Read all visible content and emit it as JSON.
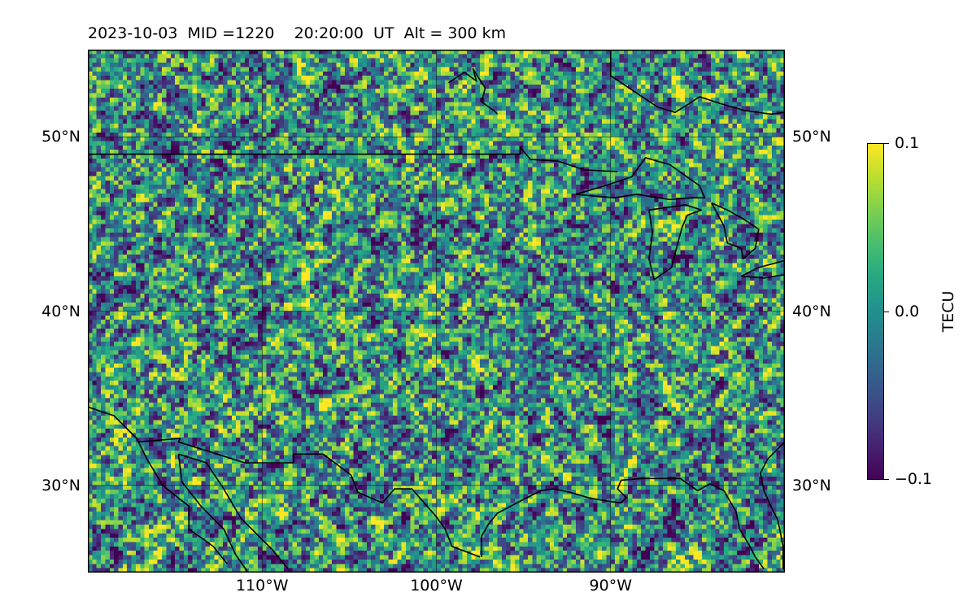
{
  "title": "2023-10-03  MID =1220    20:20:00  UT  Alt = 300 km",
  "chart_data": {
    "type": "heatmap",
    "title": "2023-10-03  MID =1220    20:20:00  UT  Alt = 300 km",
    "lon_range": [
      -120,
      -80
    ],
    "lat_range": [
      25,
      55
    ],
    "lat_ticks": [
      {
        "value": 50,
        "label": "50°N"
      },
      {
        "value": 40,
        "label": "40°N"
      },
      {
        "value": 30,
        "label": "30°N"
      }
    ],
    "lon_ticks": [
      {
        "value": -110,
        "label": "110°W"
      },
      {
        "value": -100,
        "label": "100°W"
      },
      {
        "value": -90,
        "label": "90°W"
      }
    ],
    "grid": true,
    "colormap": "viridis",
    "colorbar": {
      "label": "TECU",
      "vmin": -0.1,
      "vmax": 0.1,
      "ticks": [
        {
          "value": 0.1,
          "label": "0.1"
        },
        {
          "value": 0.0,
          "label": "0.0"
        },
        {
          "value": -0.1,
          "label": "−0.1"
        }
      ]
    },
    "field_description_colors": {
      "low": "#440154",
      "mid": "#21918c",
      "high": "#fde725"
    }
  },
  "coastlines": {
    "us_canada_border": [
      [
        -120,
        49
      ],
      [
        -95.2,
        49
      ],
      [
        -95.2,
        49.4
      ],
      [
        -94.6,
        48.7
      ],
      [
        -93,
        48.6
      ],
      [
        -91.5,
        48.1
      ],
      [
        -89.6,
        48
      ]
    ],
    "mexico_border": [
      [
        -117.1,
        32.5
      ],
      [
        -114.7,
        32.7
      ],
      [
        -114.8,
        32.5
      ],
      [
        -111,
        31.3
      ],
      [
        -108.2,
        31.3
      ],
      [
        -108.2,
        31.8
      ],
      [
        -106.5,
        31.8
      ],
      [
        -104.9,
        30.6
      ],
      [
        -104.5,
        29.6
      ],
      [
        -103.1,
        29
      ],
      [
        -102.4,
        29.8
      ],
      [
        -101.4,
        29.8
      ],
      [
        -100,
        28.2
      ],
      [
        -99.5,
        27.5
      ],
      [
        -99.1,
        26.5
      ],
      [
        -97.5,
        25.9
      ]
    ],
    "gulf_coast": [
      [
        -97.4,
        25.9
      ],
      [
        -97.4,
        27.1
      ],
      [
        -97,
        27.8
      ],
      [
        -96.5,
        28.4
      ],
      [
        -95,
        29.2
      ],
      [
        -94,
        29.7
      ],
      [
        -93.3,
        29.8
      ],
      [
        -92.3,
        29.6
      ],
      [
        -91.3,
        29.3
      ],
      [
        -90.2,
        29.1
      ],
      [
        -89.4,
        29.0
      ],
      [
        -89.1,
        29.3
      ],
      [
        -89.6,
        29.8
      ],
      [
        -89.4,
        30.3
      ],
      [
        -88.2,
        30.4
      ],
      [
        -87,
        30.4
      ],
      [
        -86,
        30.4
      ],
      [
        -85,
        29.7
      ],
      [
        -84.3,
        30.1
      ],
      [
        -83.5,
        29.7
      ],
      [
        -82.8,
        28.5
      ],
      [
        -82.6,
        27.5
      ],
      [
        -82,
        26.5
      ],
      [
        -81.7,
        25.9
      ],
      [
        -81.2,
        25.2
      ]
    ],
    "florida_atlantic": [
      [
        -80.1,
        25.2
      ],
      [
        -80.1,
        26.5
      ],
      [
        -80.4,
        28
      ],
      [
        -80.8,
        28.8
      ],
      [
        -81.2,
        29.7
      ],
      [
        -81.4,
        30.7
      ],
      [
        -81.0,
        31.5
      ],
      [
        -80.0,
        32.5
      ]
    ],
    "pacific_coast": [
      [
        -120,
        34.5
      ],
      [
        -118.5,
        34
      ],
      [
        -117.2,
        32.7
      ],
      [
        -116.6,
        31.5
      ],
      [
        -115.7,
        30
      ],
      [
        -114.2,
        28.8
      ],
      [
        -114.2,
        27.5
      ],
      [
        -112.8,
        26.5
      ],
      [
        -112,
        25.5
      ]
    ],
    "baja_gulf": [
      [
        -114.8,
        31.8
      ],
      [
        -114.6,
        30.2
      ],
      [
        -113.5,
        28.8
      ],
      [
        -112.2,
        27.5
      ],
      [
        -111.5,
        26
      ],
      [
        -110.8,
        25
      ]
    ],
    "sonora_coast": [
      [
        -114.8,
        31.8
      ],
      [
        -113.2,
        31.3
      ],
      [
        -112.2,
        29.8
      ],
      [
        -111.2,
        28.1
      ],
      [
        -110.3,
        27.2
      ],
      [
        -109.4,
        26.3
      ],
      [
        -108.5,
        25.2
      ]
    ],
    "hudson_bay": [
      [
        -90.0,
        55
      ],
      [
        -90.0,
        53.5
      ],
      [
        -87.3,
        51.7
      ],
      [
        -86.3,
        51.4
      ],
      [
        -85.5,
        51.9
      ],
      [
        -84.9,
        52.3
      ],
      [
        -83.7,
        51.9
      ],
      [
        -82.3,
        51.5
      ],
      [
        -80.8,
        51.3
      ],
      [
        -80,
        51.4
      ]
    ],
    "lake_winnipeg": [
      [
        -99.3,
        53.1
      ],
      [
        -98.4,
        53.7
      ],
      [
        -97.7,
        53.2
      ],
      [
        -97.9,
        53.9
      ],
      [
        -97.2,
        52.8
      ],
      [
        -97.4,
        52.0
      ],
      [
        -96.7,
        51.5
      ],
      [
        -96.5,
        51.3
      ]
    ],
    "lake_superior": [
      [
        -92.0,
        46.7
      ],
      [
        -90.3,
        47.2
      ],
      [
        -88.8,
        47.7
      ],
      [
        -88.0,
        48.8
      ],
      [
        -86.6,
        48.4
      ],
      [
        -84.9,
        47.2
      ],
      [
        -84.6,
        46.5
      ],
      [
        -85.3,
        46.5
      ],
      [
        -86.6,
        46.4
      ],
      [
        -88.5,
        46.7
      ],
      [
        -89.8,
        46.5
      ],
      [
        -92.0,
        46.7
      ]
    ],
    "lake_michigan": [
      [
        -87.8,
        45.8
      ],
      [
        -87.6,
        44.5
      ],
      [
        -87.8,
        43
      ],
      [
        -87.5,
        41.8
      ],
      [
        -86.5,
        42.5
      ],
      [
        -86.2,
        43.7
      ],
      [
        -85.9,
        44.8
      ],
      [
        -85.6,
        45.5
      ],
      [
        -84.8,
        45.8
      ],
      [
        -85.7,
        46.1
      ],
      [
        -87.8,
        45.8
      ]
    ],
    "lake_huron": [
      [
        -84.2,
        46.2
      ],
      [
        -83.3,
        45.8
      ],
      [
        -82.4,
        45.3
      ],
      [
        -81.5,
        44.7
      ],
      [
        -81.7,
        43.6
      ],
      [
        -82.4,
        43.0
      ],
      [
        -82.5,
        43.6
      ],
      [
        -83.3,
        43.9
      ],
      [
        -83.5,
        44.9
      ],
      [
        -84.2,
        46.2
      ]
    ],
    "lakes_east": [
      [
        -82.5,
        42.0
      ],
      [
        -81.5,
        42.5
      ],
      [
        -80,
        42.9
      ],
      [
        -80,
        42.1
      ],
      [
        -81.2,
        41.9
      ],
      [
        -82.5,
        42.0
      ]
    ]
  }
}
